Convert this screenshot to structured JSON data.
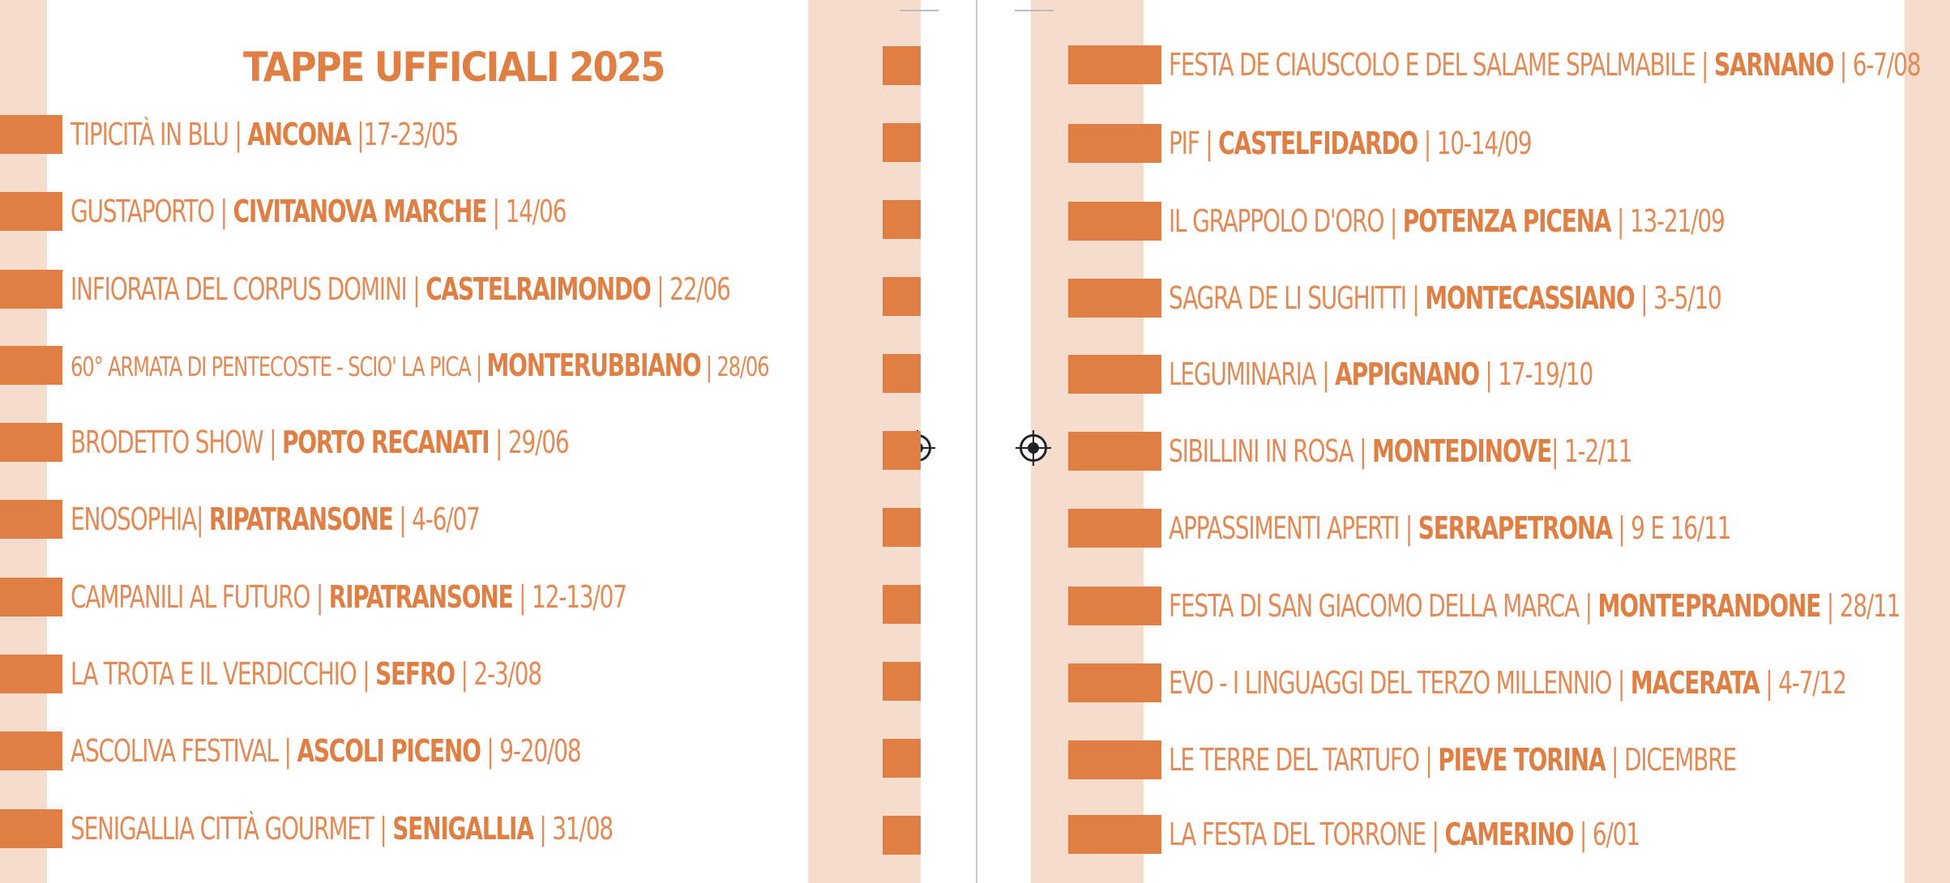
{
  "title": "TAPPE UFFICIALI 2025",
  "left_events": [
    {
      "name": "TIPICITÀ IN BLU | ",
      "city": "ANCONA",
      "date": " |17-23/05"
    },
    {
      "name": "GUSTAPORTO | ",
      "city": "CIVITANOVA MARCHE",
      "date": " | 14/06"
    },
    {
      "name": "INFIORATA DEL CORPUS DOMINI | ",
      "city": "CASTELRAIMONDO",
      "date": " | 22/06"
    },
    {
      "name": "60° ARMATA DI PENTECOSTE - SCIO' LA PICA | ",
      "city": "MONTERUBBIANO",
      "date": " | 28/06"
    },
    {
      "name": "BRODETTO SHOW | ",
      "city": "PORTO RECANATI",
      "date": " | 29/06"
    },
    {
      "name": "ENOSOPHIA| ",
      "city": "RIPATRANSONE",
      "date": " | 4-6/07"
    },
    {
      "name": "CAMPANILI AL FUTURO | ",
      "city": "RIPATRANSONE",
      "date": " | 12-13/07"
    },
    {
      "name": "LA TROTA E IL VERDICCHIO | ",
      "city": "SEFRO",
      "date": " | 2-3/08"
    },
    {
      "name": "ASCOLIVA FESTIVAL | ",
      "city": "ASCOLI PICENO",
      "date": " | 9-20/08"
    },
    {
      "name": "SENIGALLIA CITTÀ GOURMET | ",
      "city": "SENIGALLIA",
      "date": " | 31/08"
    }
  ],
  "right_events": [
    {
      "name": "FESTA DE CIAUSCOLO E DEL SALAME SPALMABILE | ",
      "city": "SARNANO",
      "date": " | 6-7/08"
    },
    {
      "name": "PIF | ",
      "city": "CASTELFIDARDO",
      "date": " | 10-14/09"
    },
    {
      "name": "IL GRAPPOLO D'ORO | ",
      "city": "POTENZA PICENA",
      "date": " | 13-21/09"
    },
    {
      "name": "SAGRA DE LI SUGHITTI | ",
      "city": "MONTECASSIANO",
      "date": " | 3-5/10"
    },
    {
      "name": "LEGUMINARIA | ",
      "city": "APPIGNANO",
      "date": " | 17-19/10"
    },
    {
      "name": "SIBILLINI IN ROSA | ",
      "city": "MONTEDINOVE",
      "date": "| 1-2/11"
    },
    {
      "name": "APPASSIMENTI APERTI | ",
      "city": "SERRAPETRONA",
      "date": " | 9 E 16/11"
    },
    {
      "name": "FESTA DI SAN GIACOMO DELLA MARCA | ",
      "city": "MONTEPRANDONE",
      "date": " | 28/11"
    },
    {
      "name": "EVO - I LINGUAGGI DEL TERZO MILLENNIO | ",
      "city": "MACERATA",
      "date": " | 4-7/12"
    },
    {
      "name": "LE TERRE DEL TARTUFO | ",
      "city": "PIEVE TORINA",
      "date": " | DICEMBRE"
    },
    {
      "name": "LA FESTA DEL TORRONE | ",
      "city": "CAMERINO",
      "date": " | 6/01"
    }
  ],
  "colors": {
    "accent": "#e07f43",
    "text": "#e28b56",
    "band": "#f6dccd"
  }
}
